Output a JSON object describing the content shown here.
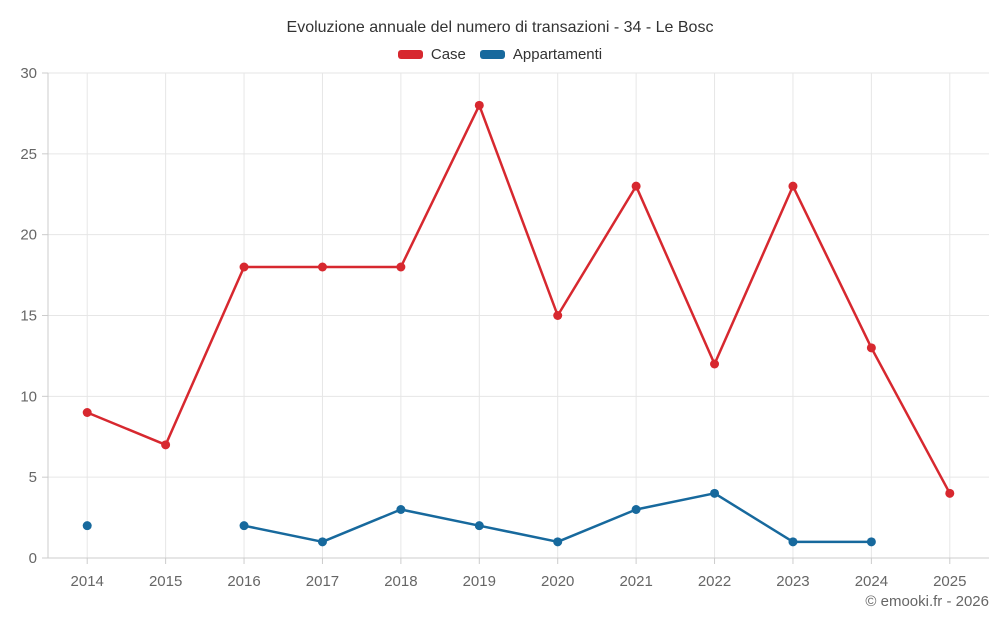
{
  "title": "Evoluzione annuale del numero di transazioni - 34 - Le Bosc",
  "footer": "© emooki.fr - 2026",
  "colors": {
    "case_red": "#d7282f",
    "appartamenti_blue": "#17699d",
    "grid": "#e6e6e6",
    "axis": "#cccccc",
    "axis_label": "#666666",
    "title_text": "#333333"
  },
  "chart_data": {
    "type": "line",
    "title": "Evoluzione annuale del numero di transazioni - 34 - Le Bosc",
    "xlabel": "",
    "ylabel": "",
    "categories": [
      "2014",
      "2015",
      "2016",
      "2017",
      "2018",
      "2019",
      "2020",
      "2021",
      "2022",
      "2023",
      "2024",
      "2025"
    ],
    "series": [
      {
        "name": "Case",
        "color": "#d7282f",
        "values": [
          9,
          7,
          18,
          18,
          18,
          28,
          15,
          23,
          12,
          23,
          13,
          4
        ]
      },
      {
        "name": "Appartamenti",
        "color": "#17699d",
        "values": [
          2,
          null,
          2,
          1,
          3,
          2,
          1,
          3,
          4,
          1,
          1,
          null
        ]
      }
    ],
    "ylim": [
      0,
      30
    ],
    "y_ticks": [
      0,
      5,
      10,
      15,
      20,
      25,
      30
    ],
    "grid": true,
    "legend_position": "top"
  }
}
